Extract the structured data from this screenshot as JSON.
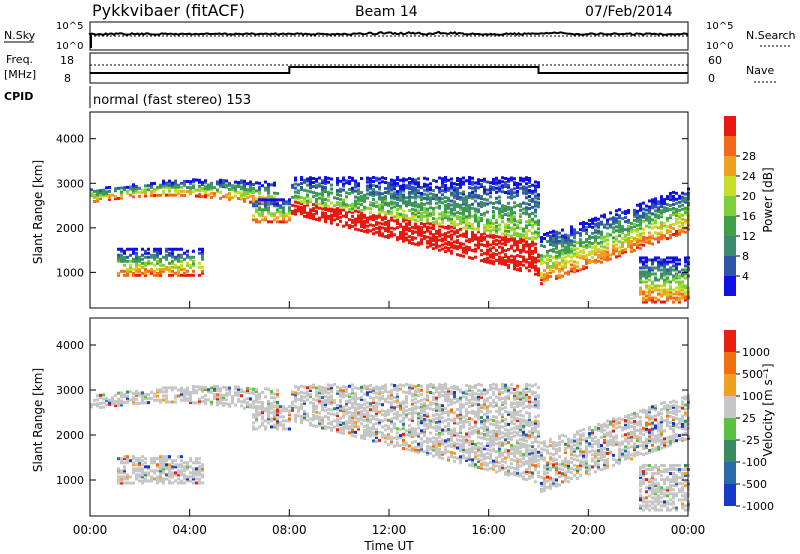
{
  "header": {
    "title": "Pykkvibaer (fitACF)",
    "beam": "Beam 14",
    "date": "07/Feb/2014"
  },
  "top_panels": {
    "nsky_label": "N.Sky",
    "nsearch_label": "N.Search",
    "freq_label_1": "Freq.",
    "freq_label_2": "[MHz]",
    "nave_label": "Nave",
    "cpid_label": "CPID",
    "cpid_text": "normal (fast stereo) 153",
    "noise_left_ticks": [
      "10^5",
      "10^0"
    ],
    "noise_right_ticks": [
      "10^5",
      "10^0"
    ],
    "freq_left_ticks": [
      "18",
      "8"
    ],
    "freq_right_ticks": [
      "60",
      "0"
    ]
  },
  "chart_data": [
    {
      "type": "heatmap",
      "ylabel": "Slant Range [km]",
      "xlabel": "Time UT",
      "xlim": [
        "00:00",
        "24:00"
      ],
      "ylim": [
        200,
        4600
      ],
      "x_ticks": [
        "00:00",
        "04:00",
        "08:00",
        "12:00",
        "16:00",
        "20:00",
        "00:00"
      ],
      "y_ticks": [
        "1000",
        "2000",
        "3000",
        "4000"
      ],
      "colorbar": {
        "label": "Power [dB]",
        "ticks": [
          "4",
          "8",
          "12",
          "16",
          "20",
          "24",
          "28"
        ],
        "colors": [
          "#1010e6",
          "#2f55aa",
          "#3d8a6f",
          "#3fa04a",
          "#7ed03a",
          "#c8dc2a",
          "#f0a020",
          "#f06a1a",
          "#e81a10"
        ]
      }
    },
    {
      "type": "heatmap",
      "ylabel": "Slant Range [km]",
      "xlabel": "Time UT",
      "xlim": [
        "00:00",
        "24:00"
      ],
      "ylim": [
        200,
        4600
      ],
      "x_ticks": [
        "00:00",
        "04:00",
        "08:00",
        "12:00",
        "16:00",
        "20:00",
        "00:00"
      ],
      "y_ticks": [
        "1000",
        "2000",
        "3000",
        "4000"
      ],
      "colorbar": {
        "label": "Velocity [m s⁻¹]",
        "ticks": [
          "1000",
          "500",
          "100",
          "25",
          "-25",
          "-100",
          "-500",
          "-1000"
        ],
        "colors": [
          "#1838c8",
          "#2a6aa8",
          "#3a8a60",
          "#5cc040",
          "#c6c6c6",
          "#f0a020",
          "#f07010",
          "#e82010"
        ]
      }
    }
  ],
  "xlabel": "Time UT"
}
